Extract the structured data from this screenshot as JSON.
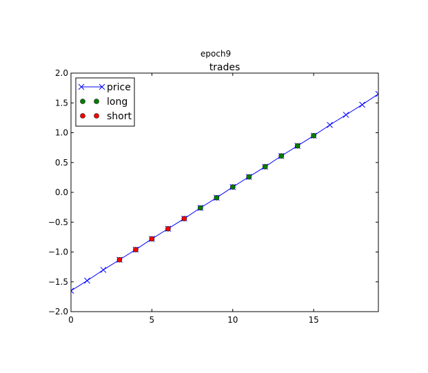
{
  "figure": {
    "suptitle": "epoch9"
  },
  "chart_data": {
    "type": "line",
    "title": "trades",
    "xlabel": "",
    "ylabel": "",
    "xlim": [
      0,
      19
    ],
    "ylim": [
      -2.0,
      2.0
    ],
    "x_ticks": [
      0,
      5,
      10,
      15
    ],
    "x_tick_labels": [
      "0",
      "5",
      "10",
      "15"
    ],
    "y_ticks": [
      2.0,
      1.5,
      1.0,
      0.5,
      0.0,
      -0.5,
      -1.0,
      -1.5,
      -2.0
    ],
    "y_tick_labels": [
      "2.0",
      "1.5",
      "1.0",
      "0.5",
      "0.0",
      "−0.5",
      "−1.0",
      "−1.5",
      "−2.0"
    ],
    "grid": false,
    "legend_position": "top-left",
    "series": [
      {
        "name": "price",
        "kind": "line",
        "marker": "x",
        "color": "#0000ff",
        "x": [
          0,
          1,
          2,
          3,
          4,
          5,
          6,
          7,
          8,
          9,
          10,
          11,
          12,
          13,
          14,
          15,
          16,
          17,
          18,
          19
        ],
        "y": [
          -1.65,
          -1.48,
          -1.3,
          -1.13,
          -0.96,
          -0.78,
          -0.61,
          -0.44,
          -0.26,
          -0.09,
          0.09,
          0.26,
          0.43,
          0.61,
          0.78,
          0.95,
          1.13,
          1.3,
          1.47,
          1.65
        ]
      },
      {
        "name": "long",
        "kind": "scatter",
        "marker": "o",
        "color": "#007f00",
        "x": [
          8,
          9,
          10,
          11,
          12,
          13,
          14,
          15
        ],
        "y": [
          -0.26,
          -0.09,
          0.09,
          0.26,
          0.43,
          0.61,
          0.78,
          0.95
        ]
      },
      {
        "name": "short",
        "kind": "scatter",
        "marker": "o",
        "color": "#ff0000",
        "x": [
          3,
          4,
          5,
          6,
          7
        ],
        "y": [
          -1.13,
          -0.96,
          -0.78,
          -0.61,
          -0.44
        ]
      }
    ]
  }
}
